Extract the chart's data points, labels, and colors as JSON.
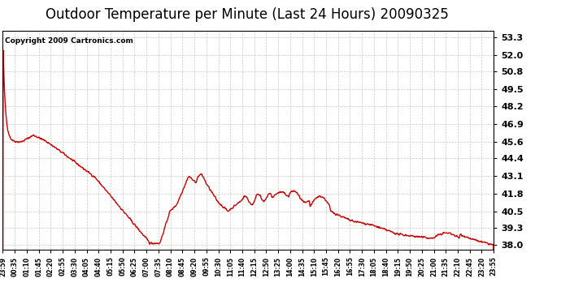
{
  "title": "Outdoor Temperature per Minute (Last 24 Hours) 20090325",
  "copyright_text": "Copyright 2009 Cartronics.com",
  "line_color": "#cc0000",
  "background_color": "#ffffff",
  "grid_color": "#c8c8c8",
  "ylim": [
    37.7,
    53.8
  ],
  "yticks": [
    38.0,
    39.3,
    40.5,
    41.8,
    43.1,
    44.4,
    45.6,
    46.9,
    48.2,
    49.5,
    50.8,
    52.0,
    53.3
  ],
  "xtick_labels": [
    "23:59",
    "00:35",
    "01:10",
    "01:45",
    "02:20",
    "02:55",
    "03:30",
    "04:05",
    "04:40",
    "05:15",
    "05:50",
    "06:25",
    "07:00",
    "07:35",
    "08:10",
    "08:45",
    "09:20",
    "09:55",
    "10:30",
    "11:05",
    "11:40",
    "12:15",
    "12:50",
    "13:25",
    "14:00",
    "14:35",
    "15:10",
    "15:45",
    "16:20",
    "16:55",
    "17:30",
    "18:05",
    "18:40",
    "19:15",
    "19:50",
    "20:25",
    "21:00",
    "21:35",
    "22:10",
    "22:45",
    "23:20",
    "23:55"
  ],
  "line_width": 1.0,
  "title_fontsize": 12,
  "ytick_fontsize": 8,
  "xtick_fontsize": 5.5,
  "copyright_fontsize": 6.5
}
